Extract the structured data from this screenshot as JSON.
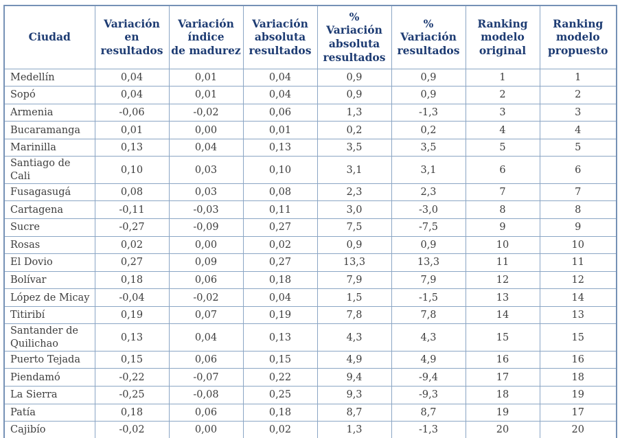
{
  "table": {
    "columns": [
      "Ciudad",
      "Variación\nen\nresultados",
      "Variación\níndice\nde madurez",
      "Variación\nabsoluta\nresultados",
      "%\nVariación\nabsoluta\nresultados",
      "%\nVariación\nresultados",
      "Ranking\nmodelo\noriginal",
      "Ranking\nmodelo\npropuesto"
    ],
    "rows": [
      {
        "ciudad": "Medellín",
        "values": [
          "0,04",
          "0,01",
          "0,04",
          "0,9",
          "0,9",
          "1",
          "1"
        ]
      },
      {
        "ciudad": "Sopó",
        "values": [
          "0,04",
          "0,01",
          "0,04",
          "0,9",
          "0,9",
          "2",
          "2"
        ]
      },
      {
        "ciudad": "Armenia",
        "values": [
          "-0,06",
          "-0,02",
          "0,06",
          "1,3",
          "-1,3",
          "3",
          "3"
        ]
      },
      {
        "ciudad": "Bucaramanga",
        "values": [
          "0,01",
          "0,00",
          "0,01",
          "0,2",
          "0,2",
          "4",
          "4"
        ]
      },
      {
        "ciudad": "Marinilla",
        "values": [
          "0,13",
          "0,04",
          "0,13",
          "3,5",
          "3,5",
          "5",
          "5"
        ]
      },
      {
        "ciudad": "Santiago de Cali",
        "values": [
          "0,10",
          "0,03",
          "0,10",
          "3,1",
          "3,1",
          "6",
          "6"
        ]
      },
      {
        "ciudad": "Fusagasugá",
        "values": [
          "0,08",
          "0,03",
          "0,08",
          "2,3",
          "2,3",
          "7",
          "7"
        ]
      },
      {
        "ciudad": "Cartagena",
        "values": [
          "-0,11",
          "-0,03",
          "0,11",
          "3,0",
          "-3,0",
          "8",
          "8"
        ]
      },
      {
        "ciudad": "Sucre",
        "values": [
          "-0,27",
          "-0,09",
          "0,27",
          "7,5",
          "-7,5",
          "9",
          "9"
        ]
      },
      {
        "ciudad": "Rosas",
        "values": [
          "0,02",
          "0,00",
          "0,02",
          "0,9",
          "0,9",
          "10",
          "10"
        ]
      },
      {
        "ciudad": "El Dovio",
        "values": [
          "0,27",
          "0,09",
          "0,27",
          "13,3",
          "13,3",
          "11",
          "11"
        ]
      },
      {
        "ciudad": "Bolívar",
        "values": [
          "0,18",
          "0,06",
          "0,18",
          "7,9",
          "7,9",
          "12",
          "12"
        ]
      },
      {
        "ciudad": "López de Micay",
        "values": [
          "-0,04",
          "-0,02",
          "0,04",
          "1,5",
          "-1,5",
          "13",
          "14"
        ]
      },
      {
        "ciudad": "Titiribí",
        "values": [
          "0,19",
          "0,07",
          "0,19",
          "7,8",
          "7,8",
          "14",
          "13"
        ]
      },
      {
        "ciudad": "Santander de Quilichao",
        "values": [
          "0,13",
          "0,04",
          "0,13",
          "4,3",
          "4,3",
          "15",
          "15"
        ]
      },
      {
        "ciudad": "Puerto Tejada",
        "values": [
          "0,15",
          "0,06",
          "0,15",
          "4,9",
          "4,9",
          "16",
          "16"
        ]
      },
      {
        "ciudad": "Piendamó",
        "values": [
          "-0,22",
          "-0,07",
          "0,22",
          "9,4",
          "-9,4",
          "17",
          "18"
        ]
      },
      {
        "ciudad": "La Sierra",
        "values": [
          "-0,25",
          "-0,08",
          "0,25",
          "9,3",
          "-9,3",
          "18",
          "19"
        ]
      },
      {
        "ciudad": "Patía",
        "values": [
          "0,18",
          "0,06",
          "0,18",
          "8,7",
          "8,7",
          "19",
          "17"
        ]
      },
      {
        "ciudad": "Cajibío",
        "values": [
          "-0,02",
          "0,00",
          "0,02",
          "1,3",
          "-1,3",
          "20",
          "20"
        ]
      }
    ]
  },
  "colors": {
    "header_text": "#1e3c73",
    "body_text": "#3d3d3d",
    "grid_line": "#8aa5c4",
    "outer_border": "#7591b5",
    "bottom_border": "#2a4a7b",
    "background": "#ffffff"
  },
  "chart_data": {
    "type": "table",
    "title": "",
    "columns": [
      "Ciudad",
      "Variación en resultados",
      "Variación índice de madurez",
      "Variación absoluta resultados",
      "% Variación absoluta resultados",
      "% Variación resultados",
      "Ranking modelo original",
      "Ranking modelo propuesto"
    ],
    "rows": [
      [
        "Medellín",
        "0,04",
        "0,01",
        "0,04",
        "0,9",
        "0,9",
        "1",
        "1"
      ],
      [
        "Sopó",
        "0,04",
        "0,01",
        "0,04",
        "0,9",
        "0,9",
        "2",
        "2"
      ],
      [
        "Armenia",
        "-0,06",
        "-0,02",
        "0,06",
        "1,3",
        "-1,3",
        "3",
        "3"
      ],
      [
        "Bucaramanga",
        "0,01",
        "0,00",
        "0,01",
        "0,2",
        "0,2",
        "4",
        "4"
      ],
      [
        "Marinilla",
        "0,13",
        "0,04",
        "0,13",
        "3,5",
        "3,5",
        "5",
        "5"
      ],
      [
        "Santiago de Cali",
        "0,10",
        "0,03",
        "0,10",
        "3,1",
        "3,1",
        "6",
        "6"
      ],
      [
        "Fusagasugá",
        "0,08",
        "0,03",
        "0,08",
        "2,3",
        "2,3",
        "7",
        "7"
      ],
      [
        "Cartagena",
        "-0,11",
        "-0,03",
        "0,11",
        "3,0",
        "-3,0",
        "8",
        "8"
      ],
      [
        "Sucre",
        "-0,27",
        "-0,09",
        "0,27",
        "7,5",
        "-7,5",
        "9",
        "9"
      ],
      [
        "Rosas",
        "0,02",
        "0,00",
        "0,02",
        "0,9",
        "0,9",
        "10",
        "10"
      ],
      [
        "El Dovio",
        "0,27",
        "0,09",
        "0,27",
        "13,3",
        "13,3",
        "11",
        "11"
      ],
      [
        "Bolívar",
        "0,18",
        "0,06",
        "0,18",
        "7,9",
        "7,9",
        "12",
        "12"
      ],
      [
        "López de Micay",
        "-0,04",
        "-0,02",
        "0,04",
        "1,5",
        "-1,5",
        "13",
        "14"
      ],
      [
        "Titiribí",
        "0,19",
        "0,07",
        "0,19",
        "7,8",
        "7,8",
        "14",
        "13"
      ],
      [
        "Santander de Quilichao",
        "0,13",
        "0,04",
        "0,13",
        "4,3",
        "4,3",
        "15",
        "15"
      ],
      [
        "Puerto Tejada",
        "0,15",
        "0,06",
        "0,15",
        "4,9",
        "4,9",
        "16",
        "16"
      ],
      [
        "Piendamó",
        "-0,22",
        "-0,07",
        "0,22",
        "9,4",
        "-9,4",
        "17",
        "18"
      ],
      [
        "La Sierra",
        "-0,25",
        "-0,08",
        "0,25",
        "9,3",
        "-9,3",
        "18",
        "19"
      ],
      [
        "Patía",
        "0,18",
        "0,06",
        "0,18",
        "8,7",
        "8,7",
        "19",
        "17"
      ],
      [
        "Cajibío",
        "-0,02",
        "0,00",
        "0,02",
        "1,3",
        "-1,3",
        "20",
        "20"
      ]
    ]
  }
}
